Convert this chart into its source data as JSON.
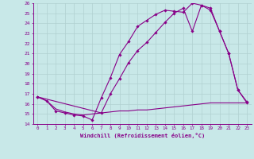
{
  "xlabel": "Windchill (Refroidissement éolien,°C)",
  "bg_color": "#c8e8e8",
  "grid_color": "#b0d0d0",
  "line_color": "#880088",
  "xlim": [
    -0.5,
    23.5
  ],
  "ylim": [
    14,
    26
  ],
  "xticks": [
    0,
    1,
    2,
    3,
    4,
    5,
    6,
    7,
    8,
    9,
    10,
    11,
    12,
    13,
    14,
    15,
    16,
    17,
    18,
    19,
    20,
    21,
    22,
    23
  ],
  "yticks": [
    14,
    15,
    16,
    17,
    18,
    19,
    20,
    21,
    22,
    23,
    24,
    25,
    26
  ],
  "line1_x": [
    0,
    1,
    2,
    3,
    4,
    5,
    6,
    7,
    8,
    9,
    10,
    11,
    12,
    13,
    14,
    15,
    16,
    17,
    18,
    19,
    20,
    21,
    22,
    23
  ],
  "line1_y": [
    16.7,
    16.3,
    15.3,
    15.1,
    14.9,
    14.8,
    14.4,
    16.6,
    18.6,
    20.9,
    22.2,
    23.7,
    24.3,
    24.9,
    25.3,
    25.2,
    25.1,
    26.0,
    25.8,
    25.3,
    23.2,
    21.0,
    17.4,
    16.2
  ],
  "line2_x": [
    0,
    1,
    2,
    3,
    4,
    5,
    6,
    7,
    8,
    9,
    10,
    11,
    12,
    13,
    14,
    15,
    16,
    17,
    18,
    19,
    20,
    21,
    22,
    23
  ],
  "line2_y": [
    16.7,
    16.3,
    15.5,
    15.2,
    15.0,
    14.9,
    15.0,
    15.1,
    15.2,
    15.3,
    15.3,
    15.4,
    15.4,
    15.5,
    15.6,
    15.7,
    15.8,
    15.9,
    16.0,
    16.1,
    16.1,
    16.1,
    16.1,
    16.1
  ],
  "line3_x": [
    0,
    7,
    8,
    9,
    10,
    11,
    12,
    13,
    14,
    15,
    16,
    17,
    18,
    19,
    20,
    21,
    22,
    23
  ],
  "line3_y": [
    16.7,
    15.1,
    17.0,
    18.5,
    20.1,
    21.3,
    22.1,
    23.1,
    24.1,
    25.0,
    25.5,
    23.2,
    25.8,
    25.5,
    23.2,
    21.0,
    17.4,
    16.1
  ]
}
